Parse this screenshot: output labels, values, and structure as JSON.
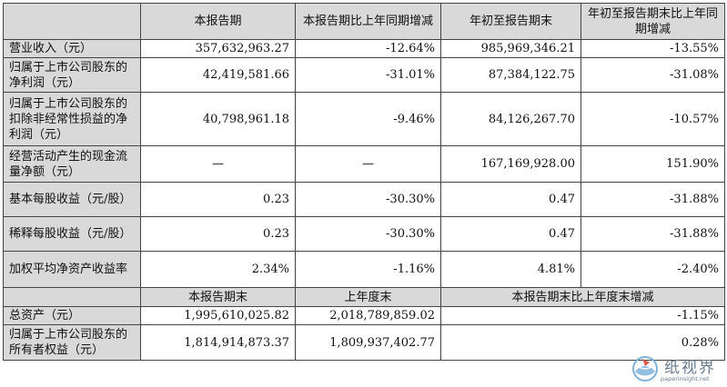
{
  "headers1": [
    "",
    "本报告期",
    "本报告期比上年同期增减",
    "年初至报告期末",
    "年初至报告期末比上年同期增减"
  ],
  "rows1": [
    {
      "label": "营业收入（元）",
      "c1": "357,632,963.27",
      "c2": "-12.64%",
      "c3": "985,969,346.21",
      "c4": "-13.55%"
    },
    {
      "label": "归属于上市公司股东的净利润（元）",
      "c1": "42,419,581.66",
      "c2": "-31.01%",
      "c3": "87,384,122.75",
      "c4": "-31.08%"
    },
    {
      "label": "归属于上市公司股东的扣除非经常性损益的净利润（元）",
      "c1": "40,798,961.18",
      "c2": "-9.46%",
      "c3": "84,126,267.70",
      "c4": "-10.57%"
    },
    {
      "label": "经营活动产生的现金流量净额（元）",
      "c1": "—",
      "c2": "—",
      "c3": "167,169,928.00",
      "c4": "151.90%"
    },
    {
      "label": "基本每股收益（元/股）",
      "c1": "0.23",
      "c2": "-30.30%",
      "c3": "0.47",
      "c4": "-31.88%"
    },
    {
      "label": "稀释每股收益（元/股）",
      "c1": "0.23",
      "c2": "-30.30%",
      "c3": "0.47",
      "c4": "-31.88%"
    },
    {
      "label": "加权平均净资产收益率",
      "c1": "2.34%",
      "c2": "-1.16%",
      "c3": "4.81%",
      "c4": "-2.40%"
    }
  ],
  "headers2": [
    "",
    "本报告期末",
    "上年度末",
    "本报告期末比上年度末增减"
  ],
  "rows2": [
    {
      "label": "总资产（元）",
      "c1": "1,995,610,025.82",
      "c2": "2,018,789,859.02",
      "c3": "-1.15%"
    },
    {
      "label": "归属于上市公司股东的所有者权益（元）",
      "c1": "1,814,914,873.37",
      "c2": "1,809,937,402.77",
      "c3": "0.28%"
    }
  ],
  "watermark": {
    "name": "纸视界",
    "url": "paperinsight.net",
    "icon": "paper-globe-logo"
  }
}
